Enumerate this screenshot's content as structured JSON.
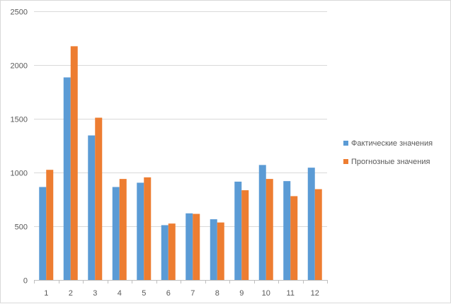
{
  "chart_data": {
    "type": "bar",
    "title": "",
    "xlabel": "",
    "ylabel": "",
    "categories": [
      "1",
      "2",
      "3",
      "4",
      "5",
      "6",
      "7",
      "8",
      "9",
      "10",
      "11",
      "12"
    ],
    "series": [
      {
        "name": "Фактические значения",
        "color": "#5b9bd5",
        "values": [
          865,
          1885,
          1345,
          865,
          905,
          510,
          620,
          565,
          915,
          1070,
          920,
          1045
        ]
      },
      {
        "name": "Прогнозные значения",
        "color": "#ed7d31",
        "values": [
          1025,
          2175,
          1510,
          940,
          955,
          525,
          615,
          535,
          835,
          940,
          780,
          845
        ]
      }
    ],
    "ylim": [
      0,
      2500
    ],
    "yticks": [
      0,
      500,
      1000,
      1500,
      2000,
      2500
    ],
    "grid": true,
    "legend_position": "right"
  }
}
